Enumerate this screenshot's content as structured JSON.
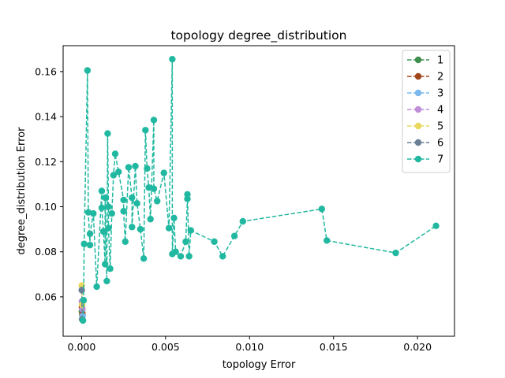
{
  "chart_data": {
    "type": "line",
    "title": "topology degree_distribution",
    "xlabel": "topology Error",
    "ylabel": "degree_distribution Error",
    "xlim": [
      -0.0011,
      0.0222
    ],
    "ylim": [
      0.0425,
      0.1715
    ],
    "xticks": [
      0.0,
      0.005,
      0.01,
      0.015,
      0.02
    ],
    "xtick_labels": [
      "0.000",
      "0.005",
      "0.010",
      "0.015",
      "0.020"
    ],
    "yticks": [
      0.06,
      0.08,
      0.1,
      0.12,
      0.14,
      0.16
    ],
    "ytick_labels": [
      "0.06",
      "0.08",
      "0.10",
      "0.12",
      "0.14",
      "0.16"
    ],
    "grid": false,
    "legend_position": "top-right",
    "series": [
      {
        "name": "1",
        "color": "#3f8f4f",
        "points": [
          [
            2e-05,
            0.0535
          ],
          [
            4e-05,
            0.052
          ]
        ]
      },
      {
        "name": "2",
        "color": "#a0461a",
        "points": [
          [
            2e-05,
            0.0555
          ],
          [
            5e-05,
            0.0525
          ]
        ]
      },
      {
        "name": "3",
        "color": "#7ab8ee",
        "points": [
          [
            3e-05,
            0.057
          ],
          [
            6e-05,
            0.0515
          ]
        ]
      },
      {
        "name": "4",
        "color": "#c08ed8",
        "points": [
          [
            2e-05,
            0.058
          ],
          [
            5e-05,
            0.0545
          ]
        ]
      },
      {
        "name": "5",
        "color": "#ead85c",
        "points": [
          [
            1e-05,
            0.065
          ],
          [
            3e-05,
            0.0565
          ]
        ]
      },
      {
        "name": "6",
        "color": "#6a7f95",
        "points": [
          [
            1e-05,
            0.063
          ],
          [
            3e-05,
            0.05
          ]
        ]
      },
      {
        "name": "7",
        "color": "#20b8a0",
        "points": [
          [
            8e-05,
            0.0495
          ],
          [
            0.00012,
            0.0585
          ],
          [
            0.00015,
            0.0835
          ],
          [
            0.00035,
            0.1605
          ],
          [
            0.0004,
            0.0975
          ],
          [
            0.0005,
            0.083
          ],
          [
            0.0005,
            0.088
          ],
          [
            0.0007,
            0.097
          ],
          [
            0.0009,
            0.0645
          ],
          [
            0.0012,
            0.107
          ],
          [
            0.0012,
            0.0995
          ],
          [
            0.0013,
            0.089
          ],
          [
            0.0014,
            0.0745
          ],
          [
            0.0014,
            0.104
          ],
          [
            0.0015,
            0.067
          ],
          [
            0.00155,
            0.1325
          ],
          [
            0.0016,
            0.1
          ],
          [
            0.0016,
            0.0905
          ],
          [
            0.0017,
            0.0725
          ],
          [
            0.0018,
            0.097
          ],
          [
            0.0019,
            0.114
          ],
          [
            0.002,
            0.1235
          ],
          [
            0.0022,
            0.1155
          ],
          [
            0.0025,
            0.103
          ],
          [
            0.0025,
            0.098
          ],
          [
            0.0026,
            0.0845
          ],
          [
            0.0028,
            0.1175
          ],
          [
            0.003,
            0.104
          ],
          [
            0.003,
            0.091
          ],
          [
            0.0032,
            0.118
          ],
          [
            0.0033,
            0.1015
          ],
          [
            0.0035,
            0.09
          ],
          [
            0.0037,
            0.077
          ],
          [
            0.0038,
            0.134
          ],
          [
            0.0039,
            0.117
          ],
          [
            0.004,
            0.1085
          ],
          [
            0.0041,
            0.0945
          ],
          [
            0.0043,
            0.1385
          ],
          [
            0.0043,
            0.108
          ],
          [
            0.0045,
            0.1025
          ],
          [
            0.0049,
            0.115
          ],
          [
            0.0052,
            0.0905
          ],
          [
            0.0054,
            0.1655
          ],
          [
            0.0054,
            0.079
          ],
          [
            0.0055,
            0.095
          ],
          [
            0.0056,
            0.08
          ],
          [
            0.0059,
            0.078
          ],
          [
            0.0062,
            0.0845
          ],
          [
            0.0063,
            0.1035
          ],
          [
            0.0063,
            0.1055
          ],
          [
            0.0064,
            0.078
          ],
          [
            0.0065,
            0.0895
          ],
          [
            0.0079,
            0.0845
          ],
          [
            0.0084,
            0.078
          ],
          [
            0.0091,
            0.087
          ],
          [
            0.0096,
            0.0935
          ],
          [
            0.0143,
            0.099
          ],
          [
            0.0146,
            0.085
          ],
          [
            0.0187,
            0.0795
          ],
          [
            0.0211,
            0.0915
          ]
        ]
      }
    ]
  }
}
